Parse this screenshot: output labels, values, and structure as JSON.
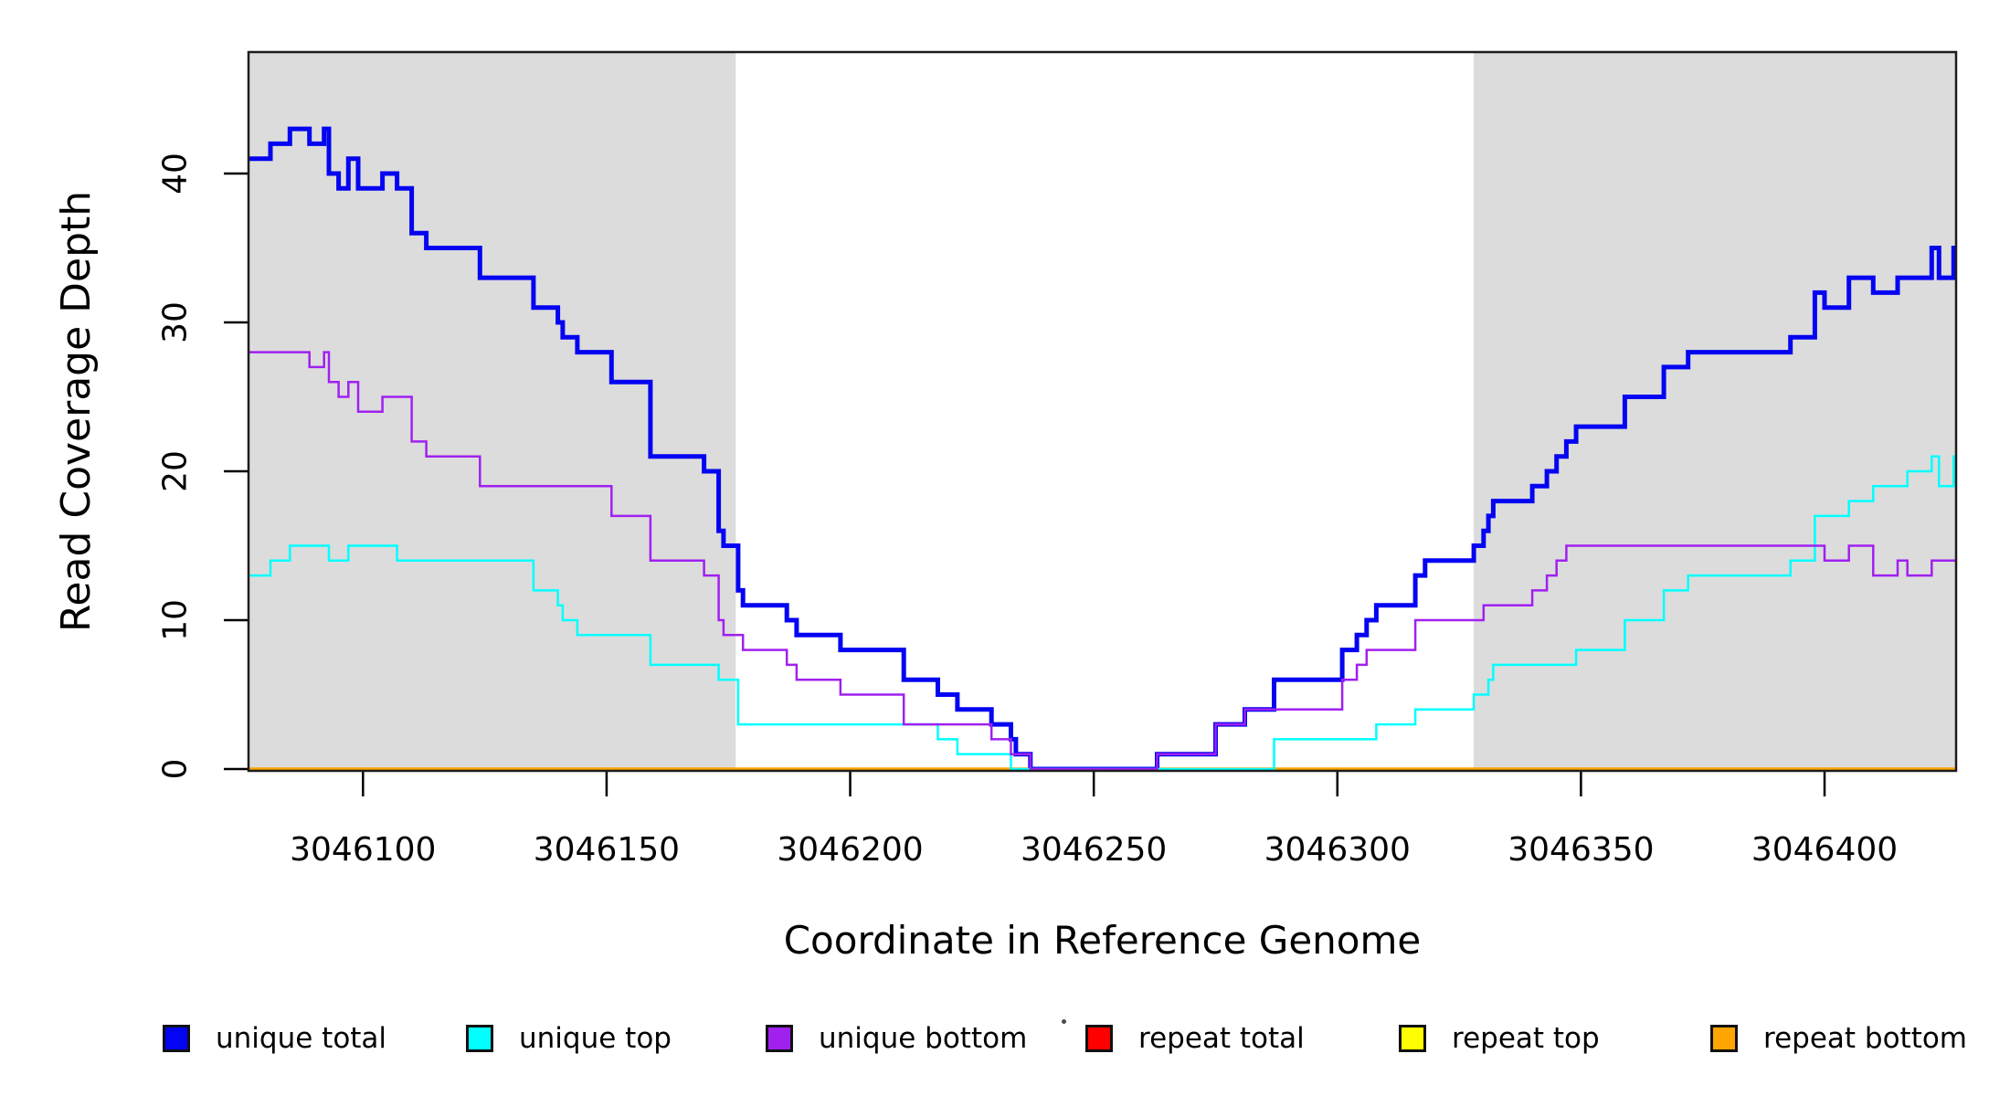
{
  "chart_data": {
    "type": "line",
    "step": true,
    "title": "",
    "xlabel": "Coordinate in Reference Genome",
    "ylabel": "Read Coverage Depth",
    "xlim": [
      3046076.5,
      3046427
    ],
    "ylim": [
      0,
      48
    ],
    "x_ticks": [
      3046100,
      3046150,
      3046200,
      3046250,
      3046300,
      3046350,
      3046400
    ],
    "y_ticks": [
      0,
      10,
      20,
      30,
      40
    ],
    "grid": false,
    "legend_position": "bottom",
    "plot_background": "#ffffff",
    "plot_border_color": "#1c1c1c",
    "tick_color": "#000000",
    "text_color": "#000000",
    "shaded_regions": [
      {
        "name": "left-shaded-region",
        "x0": 3046076.5,
        "x1": 3046176.5,
        "color": "#dcdcdc"
      },
      {
        "name": "right-shaded-region",
        "x0": 3046328,
        "x1": 3046427,
        "color": "#dcdcdc"
      }
    ],
    "draw_order": [
      3,
      4,
      5,
      0,
      1,
      2
    ],
    "series": [
      {
        "name": "unique total",
        "color": "#0404f2",
        "line_width": 5,
        "points": [
          [
            3046076.5,
            41
          ],
          [
            3046081,
            42
          ],
          [
            3046085,
            43
          ],
          [
            3046089,
            42
          ],
          [
            3046092,
            43
          ],
          [
            3046093,
            40
          ],
          [
            3046095,
            39
          ],
          [
            3046097,
            41
          ],
          [
            3046099,
            39
          ],
          [
            3046104,
            40
          ],
          [
            3046107,
            39
          ],
          [
            3046110,
            36
          ],
          [
            3046113,
            35
          ],
          [
            3046124,
            33
          ],
          [
            3046135,
            31
          ],
          [
            3046140,
            30
          ],
          [
            3046141,
            29
          ],
          [
            3046144,
            28
          ],
          [
            3046151,
            26
          ],
          [
            3046159,
            21
          ],
          [
            3046170,
            20
          ],
          [
            3046173,
            16
          ],
          [
            3046174,
            15
          ],
          [
            3046177,
            12
          ],
          [
            3046178,
            11
          ],
          [
            3046187,
            10
          ],
          [
            3046189,
            9
          ],
          [
            3046198,
            8
          ],
          [
            3046211,
            6
          ],
          [
            3046218,
            5
          ],
          [
            3046222,
            4
          ],
          [
            3046229,
            3
          ],
          [
            3046233,
            2
          ],
          [
            3046234,
            1
          ],
          [
            3046237,
            0
          ],
          [
            3046263,
            1
          ],
          [
            3046275,
            3
          ],
          [
            3046281,
            4
          ],
          [
            3046287,
            6
          ],
          [
            3046301,
            8
          ],
          [
            3046304,
            9
          ],
          [
            3046306,
            10
          ],
          [
            3046308,
            11
          ],
          [
            3046316,
            13
          ],
          [
            3046318,
            14
          ],
          [
            3046328,
            15
          ],
          [
            3046330,
            16
          ],
          [
            3046331,
            17
          ],
          [
            3046332,
            18
          ],
          [
            3046340,
            19
          ],
          [
            3046343,
            20
          ],
          [
            3046345,
            21
          ],
          [
            3046347,
            22
          ],
          [
            3046349,
            23
          ],
          [
            3046359,
            25
          ],
          [
            3046367,
            27
          ],
          [
            3046372,
            28
          ],
          [
            3046393,
            29
          ],
          [
            3046398,
            32
          ],
          [
            3046400,
            31
          ],
          [
            3046405,
            33
          ],
          [
            3046410,
            32
          ],
          [
            3046415,
            33
          ],
          [
            3046422,
            35
          ],
          [
            3046423.5,
            33
          ],
          [
            3046426.5,
            35
          ]
        ]
      },
      {
        "name": "unique top",
        "color": "#00ffff",
        "line_width": 2.5,
        "points": [
          [
            3046076.5,
            13
          ],
          [
            3046081,
            14
          ],
          [
            3046085,
            15
          ],
          [
            3046093,
            14
          ],
          [
            3046097,
            15
          ],
          [
            3046107,
            14
          ],
          [
            3046135,
            12
          ],
          [
            3046140,
            11
          ],
          [
            3046141,
            10
          ],
          [
            3046144,
            9
          ],
          [
            3046159,
            7
          ],
          [
            3046173,
            6
          ],
          [
            3046177,
            3
          ],
          [
            3046218,
            2
          ],
          [
            3046222,
            1
          ],
          [
            3046233,
            0
          ],
          [
            3046287,
            2
          ],
          [
            3046308,
            3
          ],
          [
            3046316,
            4
          ],
          [
            3046328,
            5
          ],
          [
            3046331,
            6
          ],
          [
            3046332,
            7
          ],
          [
            3046349,
            8
          ],
          [
            3046359,
            10
          ],
          [
            3046367,
            12
          ],
          [
            3046372,
            13
          ],
          [
            3046393,
            14
          ],
          [
            3046398,
            17
          ],
          [
            3046405,
            18
          ],
          [
            3046410,
            19
          ],
          [
            3046417,
            20
          ],
          [
            3046422,
            21
          ],
          [
            3046423.5,
            19
          ],
          [
            3046426.5,
            21
          ]
        ]
      },
      {
        "name": "unique bottom",
        "color": "#a020f0",
        "line_width": 2.5,
        "points": [
          [
            3046076.5,
            28
          ],
          [
            3046089,
            27
          ],
          [
            3046092,
            28
          ],
          [
            3046093,
            26
          ],
          [
            3046095,
            25
          ],
          [
            3046097,
            26
          ],
          [
            3046099,
            24
          ],
          [
            3046104,
            25
          ],
          [
            3046110,
            22
          ],
          [
            3046113,
            21
          ],
          [
            3046124,
            19
          ],
          [
            3046151,
            17
          ],
          [
            3046159,
            14
          ],
          [
            3046170,
            13
          ],
          [
            3046173,
            10
          ],
          [
            3046174,
            9
          ],
          [
            3046178,
            8
          ],
          [
            3046187,
            7
          ],
          [
            3046189,
            6
          ],
          [
            3046198,
            5
          ],
          [
            3046211,
            3
          ],
          [
            3046229,
            2
          ],
          [
            3046233,
            1
          ],
          [
            3046237,
            0
          ],
          [
            3046263,
            1
          ],
          [
            3046275,
            3
          ],
          [
            3046281,
            4
          ],
          [
            3046301,
            6
          ],
          [
            3046304,
            7
          ],
          [
            3046306,
            8
          ],
          [
            3046316,
            10
          ],
          [
            3046330,
            11
          ],
          [
            3046340,
            12
          ],
          [
            3046343,
            13
          ],
          [
            3046345,
            14
          ],
          [
            3046347,
            15
          ],
          [
            3046400,
            14
          ],
          [
            3046405,
            15
          ],
          [
            3046410,
            13
          ],
          [
            3046415,
            14
          ],
          [
            3046417,
            13
          ],
          [
            3046422,
            14
          ]
        ]
      },
      {
        "name": "repeat total",
        "color": "#ff0000",
        "line_width": 2.5,
        "points": [
          [
            3046076.5,
            0
          ]
        ]
      },
      {
        "name": "repeat top",
        "color": "#ffff00",
        "line_width": 2.5,
        "points": [
          [
            3046076.5,
            0
          ]
        ]
      },
      {
        "name": "repeat bottom",
        "color": "#ffa500",
        "line_width": 3.5,
        "points": [
          [
            3046076.5,
            0
          ]
        ]
      }
    ],
    "legend": [
      {
        "label": "unique total",
        "color": "#0404f2"
      },
      {
        "label": "unique top",
        "color": "#00ffff"
      },
      {
        "label": "unique bottom",
        "color": "#a020f0"
      },
      {
        "label": "repeat total",
        "color": "#ff0000"
      },
      {
        "label": "repeat top",
        "color": "#ffff00"
      },
      {
        "label": "repeat bottom",
        "color": "#ffa500"
      }
    ],
    "stray_mark": "·"
  }
}
